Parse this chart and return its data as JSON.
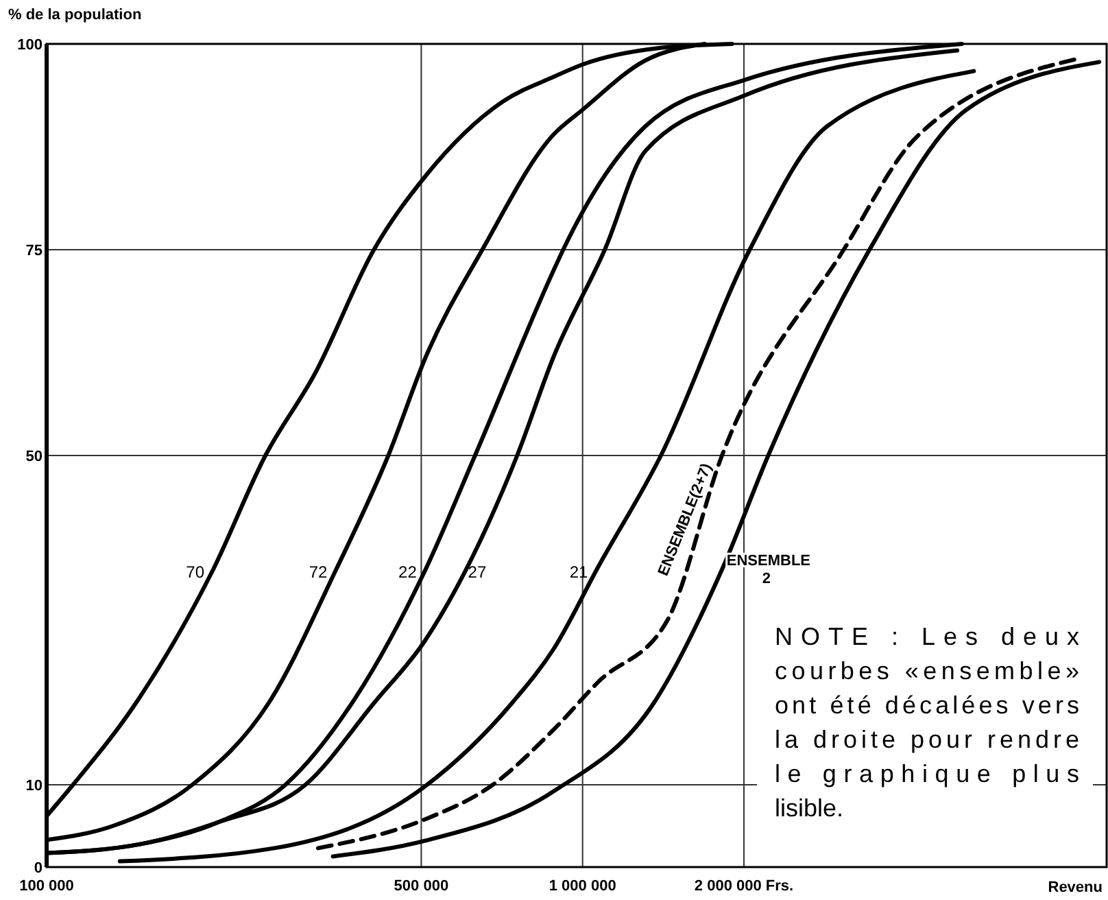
{
  "chart_data": {
    "type": "line",
    "ylabel": "% de la population",
    "xlabel": "Revenu",
    "log": "x",
    "grid": true,
    "marker": "none",
    "xlim": [
      100000,
      9500000
    ],
    "xticks": [
      {
        "value": 100000,
        "label": "100 000"
      },
      {
        "value": 500000,
        "label": "500 000"
      },
      {
        "value": 1000000,
        "label": "1 000 000"
      },
      {
        "value": 2000000,
        "label": "2 000 000 Frs."
      }
    ],
    "ylim": [
      0,
      100
    ],
    "yticks": [
      0,
      10,
      50,
      75,
      100
    ],
    "series": [
      {
        "name": "70",
        "color": "#000000",
        "line_style": "solid",
        "x": [
          100000,
          112000,
          147000,
          204000,
          256000,
          317000,
          408000,
          510000,
          710000,
          883000,
          1000000,
          1390000,
          1900000
        ],
        "values": [
          6.2,
          10,
          20,
          36,
          50,
          60,
          75,
          84,
          93,
          96,
          97.5,
          99.5,
          100
        ]
      },
      {
        "name": "72",
        "color": "#000000",
        "line_style": "solid",
        "x": [
          100000,
          133000,
          187000,
          260000,
          346000,
          434000,
          510000,
          650000,
          883000,
          1000000,
          1310000,
          1690000
        ],
        "values": [
          3.3,
          5,
          10,
          20,
          36,
          50,
          62,
          75,
          89,
          92,
          98,
          100
        ]
      },
      {
        "name": "22",
        "color": "#000000",
        "line_style": "solid",
        "x": [
          100000,
          150000,
          210000,
          279000,
          372000,
          508000,
          630000,
          883000,
          920000,
          1310000,
          2000000,
          5100000
        ],
        "values": [
          1.7,
          2.8,
          5.5,
          10,
          20,
          36,
          50,
          72.5,
          75,
          90,
          95.6,
          100
        ]
      },
      {
        "name": "27",
        "color": "#000000",
        "line_style": "solid",
        "x": [
          100000,
          150000,
          210000,
          304000,
          409000,
          508000,
          755000,
          883000,
          1100000,
          1310000,
          2000000,
          5000000
        ],
        "values": [
          1.7,
          2.8,
          5.5,
          10,
          20,
          27.5,
          50,
          62,
          75,
          87,
          93.7,
          99.2
        ]
      },
      {
        "name": "21",
        "color": "#000000",
        "line_style": "solid",
        "x": [
          137000,
          266000,
          508000,
          740000,
          883000,
          1070000,
          1400000,
          2050000,
          2860000,
          5370000
        ],
        "values": [
          0.7,
          2.3,
          9.8,
          20,
          26.5,
          36.5,
          50,
          75,
          90,
          96.7
        ]
      },
      {
        "name": "ENSEMBLE(2+7)",
        "color": "#000000",
        "line_style": "dashed",
        "x": [
          321000,
          508000,
          680000,
          883000,
          1070000,
          1440000,
          1820000,
          3070000,
          4200000,
          8400000
        ],
        "values": [
          2.3,
          5.8,
          10,
          16.7,
          22.5,
          30,
          50,
          75,
          88.7,
          98.2
        ]
      },
      {
        "name": "ENSEMBLE 2",
        "color": "#000000",
        "line_style": "solid",
        "x": [
          342000,
          508000,
          883000,
          1360000,
          1830000,
          2220000,
          3430000,
          5200000,
          9200000
        ],
        "values": [
          1.3,
          3.2,
          9.2,
          20,
          36.5,
          50,
          75,
          92,
          97.8
        ]
      }
    ],
    "annotations": [
      "NOTE : Les deux courbes «ensemble» ont été décalées vers la droite pour rendre le graphique plus lisible."
    ]
  }
}
